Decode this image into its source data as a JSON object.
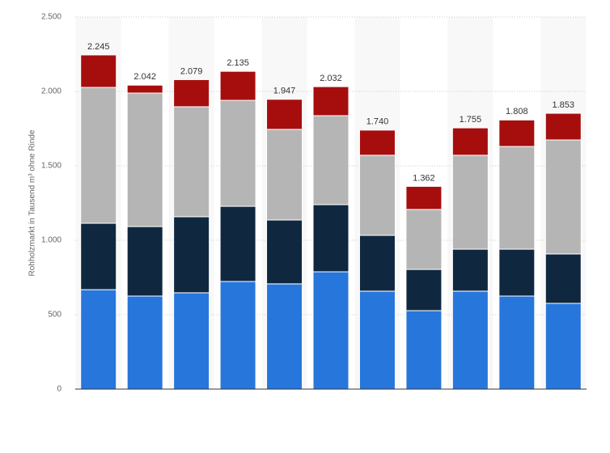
{
  "chart_data": {
    "type": "stacked-bar",
    "y_label": "Rohholzmarkt in Tausend m³ ohne Rinde",
    "categories": [
      null,
      null,
      null,
      null,
      null,
      null,
      null,
      null,
      null,
      null,
      null
    ],
    "series": [
      {
        "color": "#2776dc",
        "values": [
          668,
          625,
          647,
          723,
          707,
          788,
          658,
          527,
          658,
          625,
          576
        ]
      },
      {
        "color": "#0f2840",
        "values": [
          446,
          467,
          511,
          505,
          429,
          451,
          375,
          277,
          282,
          315,
          332
        ]
      },
      {
        "color": "#b5b5b5",
        "values": [
          913,
          897,
          739,
          712,
          609,
          598,
          538,
          403,
          631,
          690,
          766
        ]
      },
      {
        "color": "#a60e0e",
        "values": [
          218,
          53,
          182,
          195,
          202,
          195,
          169,
          155,
          184,
          178,
          179
        ]
      }
    ],
    "totals": [
      {
        "value": 2245,
        "label": "2.245"
      },
      {
        "value": 2042,
        "label": "2.042"
      },
      {
        "value": 2079,
        "label": "2.079"
      },
      {
        "value": 2135,
        "label": "2.135"
      },
      {
        "value": 1947,
        "label": "1.947"
      },
      {
        "value": 2032,
        "label": "2.032"
      },
      {
        "value": 1740,
        "label": "1.740"
      },
      {
        "value": 1362,
        "label": "1.362"
      },
      {
        "value": 1755,
        "label": "1.755"
      },
      {
        "value": 1808,
        "label": "1.808"
      },
      {
        "value": 1853,
        "label": "1.853"
      }
    ],
    "ylim": [
      0,
      2500
    ],
    "yticks": [
      0,
      500,
      {
        "value": 1000,
        "label": "1.000"
      },
      {
        "value": 1500,
        "label": "1.500"
      },
      {
        "value": 2000,
        "label": "2.000"
      },
      {
        "value": 2500,
        "label": "2.500"
      }
    ],
    "grid": true
  }
}
